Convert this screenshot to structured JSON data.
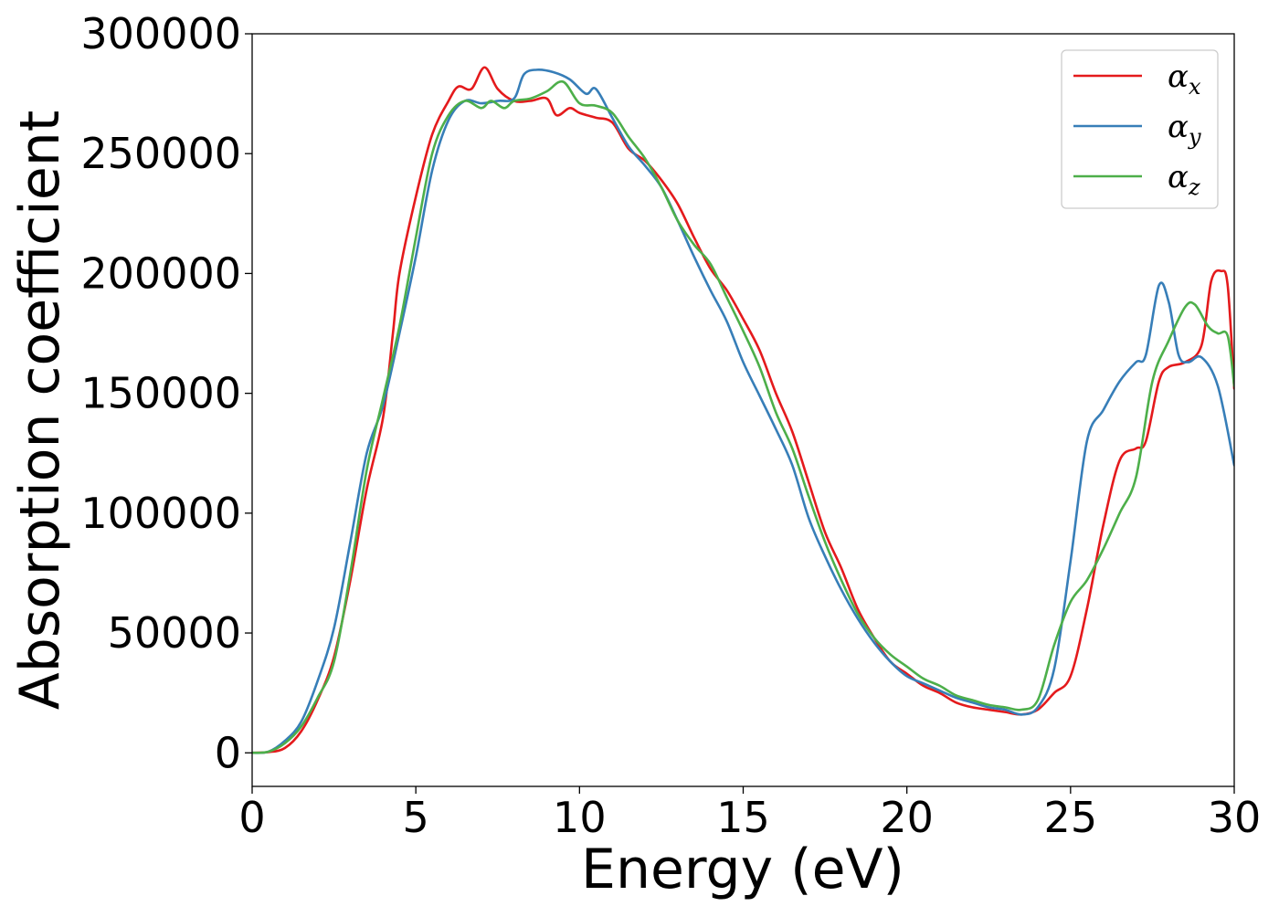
{
  "chart_data": {
    "type": "line",
    "xlabel": "Energy (eV)",
    "ylabel": "Absorption coefficient",
    "xlim": [
      0,
      30
    ],
    "ylim": [
      -14000,
      300000
    ],
    "x_ticks": [
      0,
      5,
      10,
      15,
      20,
      25,
      30
    ],
    "y_ticks": [
      0,
      50000,
      100000,
      150000,
      200000,
      250000,
      300000
    ],
    "x_tick_labels": [
      "0",
      "5",
      "10",
      "15",
      "20",
      "25",
      "30"
    ],
    "y_tick_labels": [
      "0",
      "50000",
      "100000",
      "150000",
      "200000",
      "250000",
      "300000"
    ],
    "grid": false,
    "legend_position": "top-right",
    "series": [
      {
        "name": "α_x",
        "symbol": "α",
        "subscript": "x",
        "color": "#e41a1c",
        "points": [
          [
            0,
            0
          ],
          [
            0.5,
            300
          ],
          [
            1.0,
            2000
          ],
          [
            1.5,
            9000
          ],
          [
            2.0,
            22000
          ],
          [
            2.5,
            40000
          ],
          [
            3.0,
            72000
          ],
          [
            3.5,
            110000
          ],
          [
            4.0,
            140000
          ],
          [
            4.3,
            175000
          ],
          [
            4.5,
            200000
          ],
          [
            5.0,
            232000
          ],
          [
            5.5,
            258000
          ],
          [
            6.0,
            272000
          ],
          [
            6.3,
            278000
          ],
          [
            6.7,
            277000
          ],
          [
            7.1,
            286000
          ],
          [
            7.5,
            277000
          ],
          [
            8.0,
            272000
          ],
          [
            8.5,
            272000
          ],
          [
            9.0,
            273000
          ],
          [
            9.3,
            266000
          ],
          [
            9.7,
            269000
          ],
          [
            10.0,
            267000
          ],
          [
            10.5,
            265000
          ],
          [
            11.0,
            263000
          ],
          [
            11.5,
            252000
          ],
          [
            12.0,
            247000
          ],
          [
            12.5,
            239000
          ],
          [
            13.0,
            229000
          ],
          [
            13.5,
            215000
          ],
          [
            14.0,
            202000
          ],
          [
            14.5,
            193000
          ],
          [
            15.0,
            181000
          ],
          [
            15.5,
            168000
          ],
          [
            16.0,
            150000
          ],
          [
            16.5,
            134000
          ],
          [
            17.0,
            113000
          ],
          [
            17.5,
            92000
          ],
          [
            18.0,
            77000
          ],
          [
            18.5,
            60000
          ],
          [
            19.0,
            48000
          ],
          [
            19.5,
            38000
          ],
          [
            20.0,
            33000
          ],
          [
            20.5,
            28000
          ],
          [
            21.0,
            25000
          ],
          [
            21.5,
            21000
          ],
          [
            22.0,
            19000
          ],
          [
            22.5,
            18000
          ],
          [
            23.0,
            17000
          ],
          [
            23.5,
            16000
          ],
          [
            24.0,
            18000
          ],
          [
            24.5,
            25000
          ],
          [
            25.0,
            32000
          ],
          [
            25.5,
            60000
          ],
          [
            26.0,
            95000
          ],
          [
            26.5,
            122000
          ],
          [
            27.0,
            127000
          ],
          [
            27.3,
            130000
          ],
          [
            27.7,
            155000
          ],
          [
            28.0,
            161000
          ],
          [
            28.5,
            163000
          ],
          [
            29.0,
            170000
          ],
          [
            29.3,
            197000
          ],
          [
            29.6,
            201000
          ],
          [
            29.8,
            195000
          ],
          [
            30.0,
            152000
          ]
        ]
      },
      {
        "name": "α_y",
        "symbol": "α",
        "subscript": "y",
        "color": "#377eb8",
        "points": [
          [
            0,
            0
          ],
          [
            0.5,
            500
          ],
          [
            1.0,
            5000
          ],
          [
            1.5,
            13000
          ],
          [
            2.0,
            30000
          ],
          [
            2.5,
            52000
          ],
          [
            3.0,
            88000
          ],
          [
            3.5,
            125000
          ],
          [
            4.0,
            145000
          ],
          [
            4.5,
            175000
          ],
          [
            5.0,
            207000
          ],
          [
            5.5,
            243000
          ],
          [
            6.0,
            264000
          ],
          [
            6.5,
            272000
          ],
          [
            7.0,
            271000
          ],
          [
            7.5,
            272000
          ],
          [
            8.0,
            273000
          ],
          [
            8.3,
            283000
          ],
          [
            8.7,
            285000
          ],
          [
            9.2,
            284000
          ],
          [
            9.7,
            281000
          ],
          [
            10.2,
            275000
          ],
          [
            10.5,
            277000
          ],
          [
            11.0,
            265000
          ],
          [
            11.5,
            253000
          ],
          [
            12.0,
            245000
          ],
          [
            12.5,
            236000
          ],
          [
            13.0,
            222000
          ],
          [
            13.5,
            207000
          ],
          [
            14.0,
            193000
          ],
          [
            14.5,
            180000
          ],
          [
            15.0,
            163000
          ],
          [
            15.5,
            149000
          ],
          [
            16.0,
            135000
          ],
          [
            16.5,
            120000
          ],
          [
            17.0,
            98000
          ],
          [
            17.5,
            82000
          ],
          [
            18.0,
            68000
          ],
          [
            18.5,
            56000
          ],
          [
            19.0,
            46000
          ],
          [
            19.5,
            38000
          ],
          [
            20.0,
            32000
          ],
          [
            20.5,
            29000
          ],
          [
            21.0,
            26000
          ],
          [
            21.5,
            23000
          ],
          [
            22.0,
            21000
          ],
          [
            22.5,
            19000
          ],
          [
            23.0,
            18000
          ],
          [
            23.5,
            16000
          ],
          [
            24.0,
            19000
          ],
          [
            24.5,
            35000
          ],
          [
            25.0,
            80000
          ],
          [
            25.5,
            130000
          ],
          [
            26.0,
            143000
          ],
          [
            26.5,
            155000
          ],
          [
            27.0,
            163000
          ],
          [
            27.3,
            166000
          ],
          [
            27.7,
            195000
          ],
          [
            28.0,
            188000
          ],
          [
            28.3,
            166000
          ],
          [
            28.6,
            163000
          ],
          [
            29.0,
            165000
          ],
          [
            29.5,
            153000
          ],
          [
            30.0,
            120000
          ]
        ]
      },
      {
        "name": "α_z",
        "symbol": "α",
        "subscript": "z",
        "color": "#4daf4a",
        "points": [
          [
            0,
            0
          ],
          [
            0.5,
            500
          ],
          [
            1.0,
            4000
          ],
          [
            1.5,
            11000
          ],
          [
            2.0,
            23000
          ],
          [
            2.5,
            38000
          ],
          [
            3.0,
            75000
          ],
          [
            3.5,
            118000
          ],
          [
            4.0,
            148000
          ],
          [
            4.5,
            178000
          ],
          [
            5.0,
            215000
          ],
          [
            5.5,
            250000
          ],
          [
            6.0,
            266000
          ],
          [
            6.5,
            272000
          ],
          [
            7.0,
            269000
          ],
          [
            7.3,
            272000
          ],
          [
            7.7,
            269000
          ],
          [
            8.0,
            272000
          ],
          [
            8.5,
            273000
          ],
          [
            9.0,
            276000
          ],
          [
            9.5,
            280000
          ],
          [
            10.0,
            271000
          ],
          [
            10.5,
            270000
          ],
          [
            11.0,
            267000
          ],
          [
            11.5,
            257000
          ],
          [
            12.0,
            248000
          ],
          [
            12.5,
            236000
          ],
          [
            13.0,
            222000
          ],
          [
            13.5,
            212000
          ],
          [
            14.0,
            204000
          ],
          [
            14.5,
            190000
          ],
          [
            15.0,
            176000
          ],
          [
            15.5,
            161000
          ],
          [
            16.0,
            142000
          ],
          [
            16.5,
            127000
          ],
          [
            17.0,
            107000
          ],
          [
            17.5,
            88000
          ],
          [
            18.0,
            72000
          ],
          [
            18.5,
            58000
          ],
          [
            19.0,
            48000
          ],
          [
            19.5,
            41000
          ],
          [
            20.0,
            36000
          ],
          [
            20.5,
            31000
          ],
          [
            21.0,
            28000
          ],
          [
            21.5,
            24000
          ],
          [
            22.0,
            22000
          ],
          [
            22.5,
            20000
          ],
          [
            23.0,
            19000
          ],
          [
            23.5,
            18000
          ],
          [
            24.0,
            22000
          ],
          [
            24.5,
            45000
          ],
          [
            25.0,
            63000
          ],
          [
            25.5,
            72000
          ],
          [
            26.0,
            85000
          ],
          [
            26.5,
            100000
          ],
          [
            27.0,
            115000
          ],
          [
            27.5,
            155000
          ],
          [
            28.0,
            172000
          ],
          [
            28.5,
            186000
          ],
          [
            28.8,
            187000
          ],
          [
            29.2,
            178000
          ],
          [
            29.5,
            175000
          ],
          [
            29.8,
            174000
          ],
          [
            30.0,
            153000
          ]
        ]
      }
    ]
  }
}
